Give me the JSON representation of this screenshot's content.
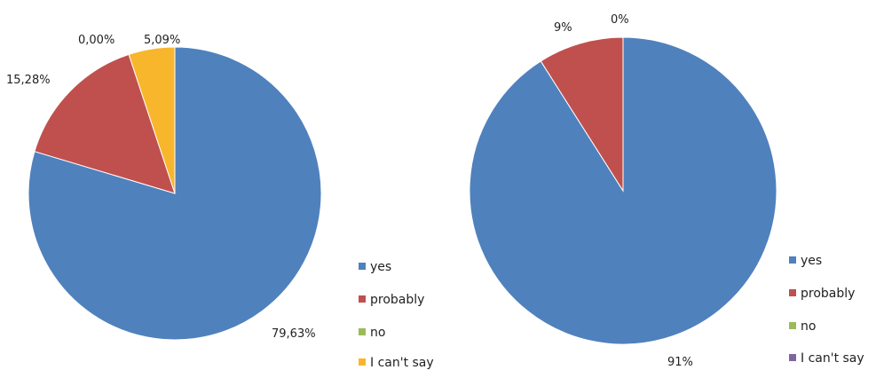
{
  "chart_data": [
    {
      "type": "pie",
      "start_angle_deg": 0,
      "direction": "clockwise",
      "categories": [
        "yes",
        "probably",
        "no",
        "I can't say"
      ],
      "values": [
        79.63,
        15.28,
        0.0,
        5.09
      ],
      "labels": [
        "79,63%",
        "15,28%",
        "0,00%",
        "5,09%"
      ],
      "colors": [
        "#4F81BD",
        "#C0504D",
        "#9BBB59",
        "#F8B62D"
      ],
      "legend": {
        "placement": "right-bottom",
        "entries": [
          "yes",
          "probably",
          "no",
          "I can't say"
        ]
      }
    },
    {
      "type": "pie",
      "start_angle_deg": 0,
      "direction": "clockwise",
      "categories": [
        "yes",
        "probably",
        "no",
        "I can't say"
      ],
      "values": [
        91,
        9,
        0,
        0
      ],
      "labels": [
        "91%",
        "9%",
        "0%",
        ""
      ],
      "colors": [
        "#4F81BD",
        "#C0504D",
        "#9BBB59",
        "#8064A2"
      ],
      "legend": {
        "placement": "right-bottom",
        "entries": [
          "yes",
          "probably",
          "no",
          "I can't say"
        ]
      }
    }
  ]
}
